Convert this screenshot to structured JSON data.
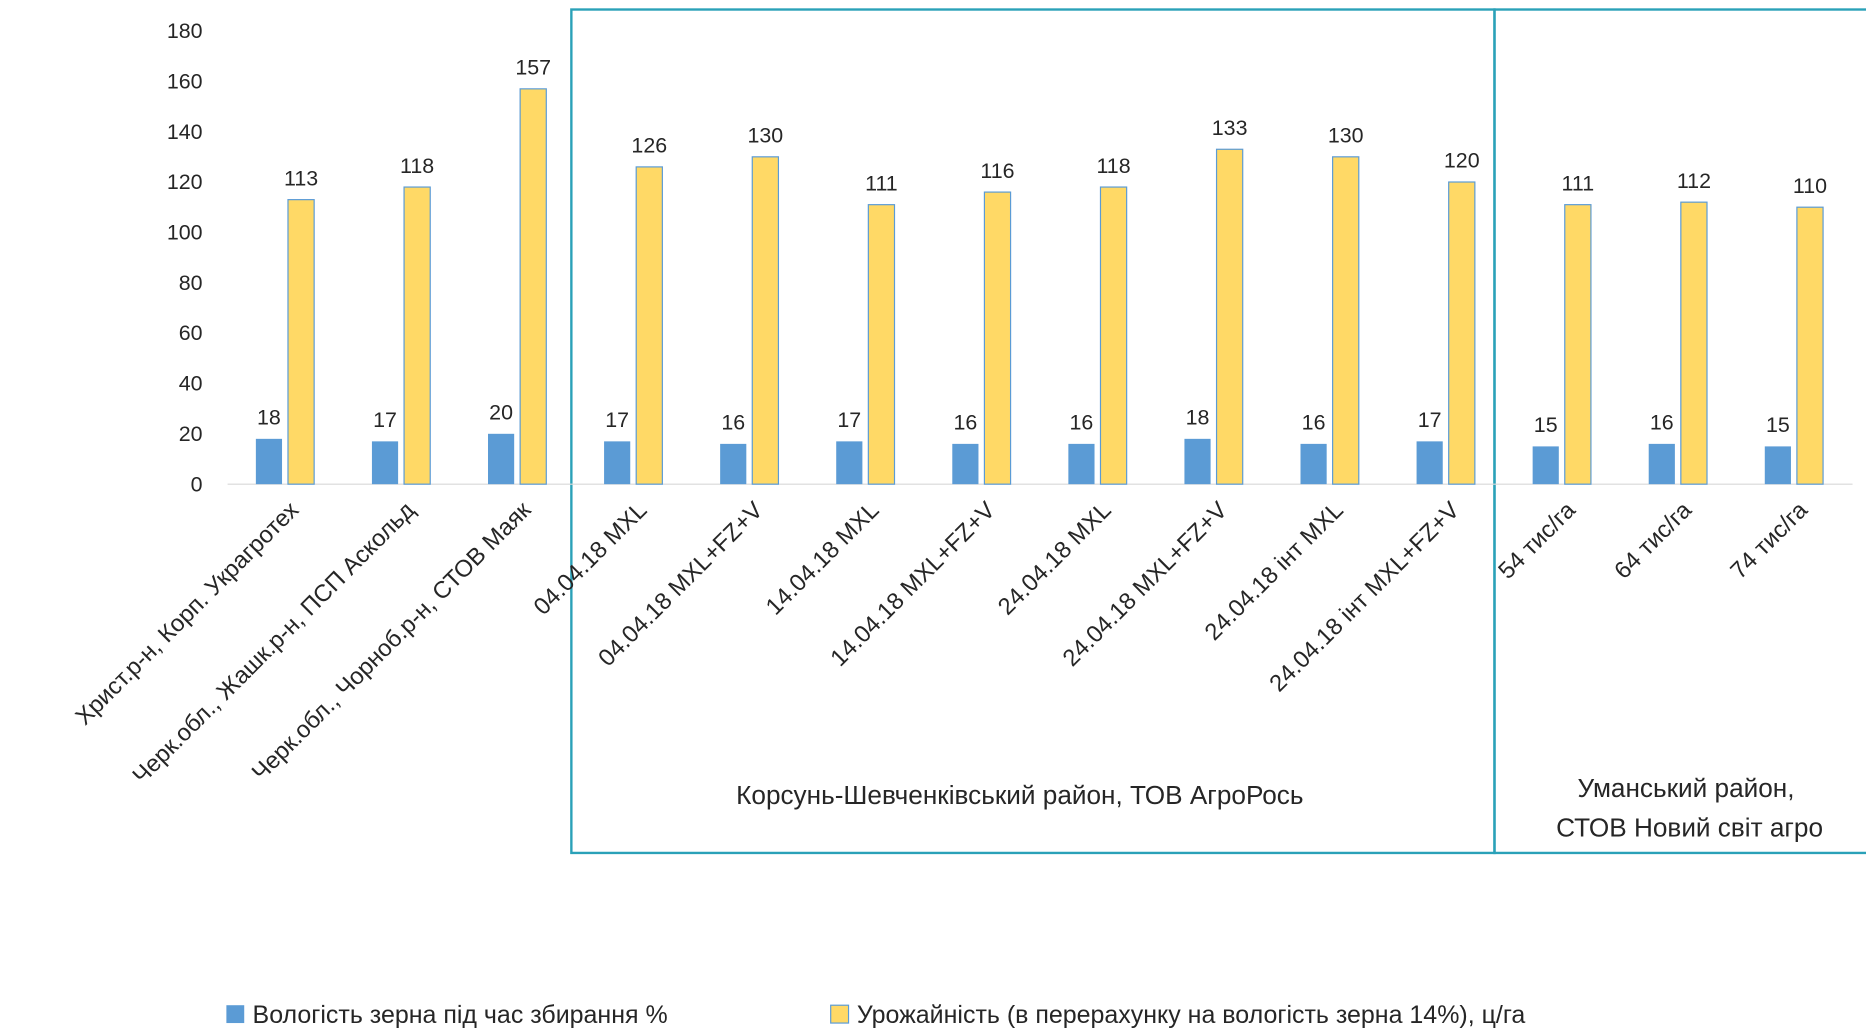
{
  "chart_data": {
    "type": "bar",
    "categories": [
      "Христ.р-н, Корп. Украгротех",
      "Черк.обл., Жашк.р-н, ПСП Аскольд",
      "Черк.обл., Чорноб.р-н, СТОВ Маяк",
      "04.04.18 MXL",
      "04.04.18 MXL+FZ+V",
      "14.04.18 MXL",
      "14.04.18 MXL+FZ+V",
      "24.04.18 MXL",
      "24.04.18 MXL+FZ+V",
      "24.04.18 інт MXL",
      "24.04.18 інт MXL+FZ+V",
      "54 тис/га",
      "64 тис/га",
      "74 тис/га"
    ],
    "series": [
      {
        "name": "Вологість зерна під час збирання %",
        "color": "#5b9bd5",
        "values": [
          18,
          17,
          20,
          17,
          16,
          17,
          16,
          16,
          18,
          16,
          17,
          15,
          16,
          15
        ]
      },
      {
        "name": "Урожайність  (в перерахунку на вологість зерна 14%), ц/га",
        "color": "#ffd966",
        "values": [
          113,
          118,
          157,
          126,
          130,
          111,
          116,
          118,
          133,
          130,
          120,
          111,
          112,
          110
        ]
      }
    ],
    "ylim": [
      0,
      180
    ],
    "yticks": [
      0,
      20,
      40,
      60,
      80,
      100,
      120,
      140,
      160,
      180
    ],
    "grid": false,
    "annotations": [
      "Корсунь-Шевченківський район, ТОВ АгроРось",
      "Уманський район,",
      "СТОВ Новий світ агро"
    ],
    "legend": "bottom"
  }
}
